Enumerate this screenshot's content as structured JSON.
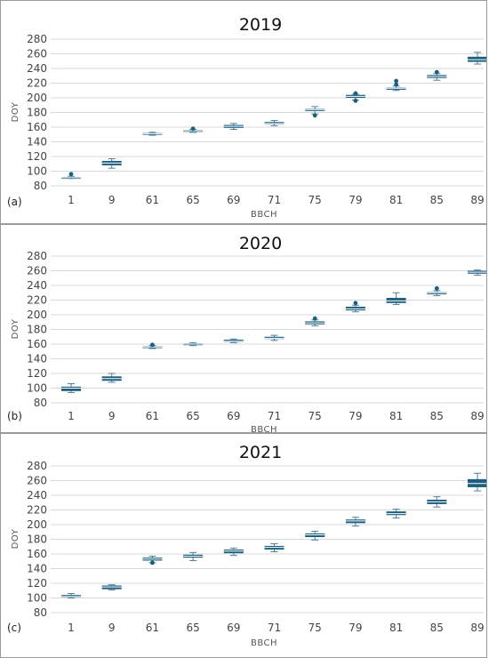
{
  "chart_data": [
    {
      "type": "box",
      "panel_label": "(a)",
      "title": "2019",
      "xlabel": "BBCH",
      "ylabel": "DOY",
      "ylim": [
        80,
        280
      ],
      "yticks": [
        80,
        100,
        120,
        140,
        160,
        180,
        200,
        220,
        240,
        260,
        280
      ],
      "categories": [
        "1",
        "9",
        "61",
        "65",
        "69",
        "71",
        "75",
        "79",
        "81",
        "85",
        "89"
      ],
      "boxes": [
        {
          "min": 90,
          "q1": 90,
          "median": 91,
          "q3": 92,
          "max": 93,
          "outliers": [
            96
          ]
        },
        {
          "min": 104,
          "q1": 108,
          "median": 111,
          "q3": 114,
          "max": 117,
          "outliers": []
        },
        {
          "min": 149,
          "q1": 150,
          "median": 151,
          "q3": 152,
          "max": 153,
          "outliers": []
        },
        {
          "min": 153,
          "q1": 154,
          "median": 155,
          "q3": 156,
          "max": 157,
          "outliers": [
            158
          ]
        },
        {
          "min": 157,
          "q1": 159,
          "median": 161,
          "q3": 163,
          "max": 165,
          "outliers": []
        },
        {
          "min": 162,
          "q1": 164,
          "median": 165,
          "q3": 167,
          "max": 169,
          "outliers": []
        },
        {
          "min": 178,
          "q1": 182,
          "median": 184,
          "q3": 185,
          "max": 188,
          "outliers": [
            176
          ]
        },
        {
          "min": 197,
          "q1": 200,
          "median": 202,
          "q3": 204,
          "max": 205,
          "outliers": [
            206,
            196
          ]
        },
        {
          "min": 210,
          "q1": 211,
          "median": 213,
          "q3": 214,
          "max": 216,
          "outliers": [
            218,
            223
          ]
        },
        {
          "min": 224,
          "q1": 227,
          "median": 229,
          "q3": 231,
          "max": 233,
          "outliers": [
            235
          ]
        },
        {
          "min": 246,
          "q1": 249,
          "median": 252,
          "q3": 256,
          "max": 262,
          "outliers": []
        }
      ]
    },
    {
      "type": "box",
      "panel_label": "(b)",
      "title": "2020",
      "xlabel": "BBCH",
      "ylabel": "DOY",
      "ylim": [
        80,
        280
      ],
      "yticks": [
        80,
        100,
        120,
        140,
        160,
        180,
        200,
        220,
        240,
        260,
        280
      ],
      "categories": [
        "1",
        "9",
        "61",
        "65",
        "69",
        "71",
        "75",
        "79",
        "81",
        "85",
        "89"
      ],
      "boxes": [
        {
          "min": 94,
          "q1": 96,
          "median": 100,
          "q3": 102,
          "max": 106,
          "outliers": []
        },
        {
          "min": 108,
          "q1": 110,
          "median": 113,
          "q3": 116,
          "max": 120,
          "outliers": []
        },
        {
          "min": 154,
          "q1": 155,
          "median": 156,
          "q3": 157,
          "max": 158,
          "outliers": [
            159
          ]
        },
        {
          "min": 158,
          "q1": 159,
          "median": 160,
          "q3": 161,
          "max": 162,
          "outliers": []
        },
        {
          "min": 162,
          "q1": 163,
          "median": 164,
          "q3": 166,
          "max": 167,
          "outliers": []
        },
        {
          "min": 165,
          "q1": 167,
          "median": 168,
          "q3": 170,
          "max": 172,
          "outliers": []
        },
        {
          "min": 185,
          "q1": 187,
          "median": 189,
          "q3": 191,
          "max": 193,
          "outliers": [
            195
          ]
        },
        {
          "min": 204,
          "q1": 206,
          "median": 208,
          "q3": 211,
          "max": 213,
          "outliers": [
            216
          ]
        },
        {
          "min": 214,
          "q1": 216,
          "median": 219,
          "q3": 223,
          "max": 230,
          "outliers": []
        },
        {
          "min": 226,
          "q1": 228,
          "median": 230,
          "q3": 231,
          "max": 233,
          "outliers": [
            236
          ]
        },
        {
          "min": 254,
          "q1": 256,
          "median": 258,
          "q3": 260,
          "max": 261,
          "outliers": []
        }
      ]
    },
    {
      "type": "box",
      "panel_label": "(c)",
      "title": "2021",
      "xlabel": "BBCH",
      "ylabel": "DOY",
      "ylim": [
        80,
        280
      ],
      "yticks": [
        80,
        100,
        120,
        140,
        160,
        180,
        200,
        220,
        240,
        260,
        280
      ],
      "categories": [
        "1",
        "9",
        "61",
        "65",
        "69",
        "71",
        "75",
        "79",
        "81",
        "85",
        "89"
      ],
      "boxes": [
        {
          "min": 100,
          "q1": 101,
          "median": 102,
          "q3": 104,
          "max": 106,
          "outliers": []
        },
        {
          "min": 111,
          "q1": 112,
          "median": 115,
          "q3": 117,
          "max": 118,
          "outliers": []
        },
        {
          "min": 148,
          "q1": 151,
          "median": 153,
          "q3": 155,
          "max": 157,
          "outliers": [
            148
          ]
        },
        {
          "min": 151,
          "q1": 155,
          "median": 157,
          "q3": 159,
          "max": 162,
          "outliers": []
        },
        {
          "min": 158,
          "q1": 161,
          "median": 164,
          "q3": 166,
          "max": 168,
          "outliers": []
        },
        {
          "min": 163,
          "q1": 166,
          "median": 169,
          "q3": 171,
          "max": 174,
          "outliers": []
        },
        {
          "min": 179,
          "q1": 183,
          "median": 186,
          "q3": 188,
          "max": 191,
          "outliers": []
        },
        {
          "min": 198,
          "q1": 202,
          "median": 205,
          "q3": 207,
          "max": 210,
          "outliers": []
        },
        {
          "min": 209,
          "q1": 213,
          "median": 215,
          "q3": 218,
          "max": 221,
          "outliers": []
        },
        {
          "min": 224,
          "q1": 228,
          "median": 231,
          "q3": 234,
          "max": 238,
          "outliers": []
        },
        {
          "min": 246,
          "q1": 251,
          "median": 256,
          "q3": 262,
          "max": 270,
          "outliers": []
        }
      ]
    }
  ]
}
